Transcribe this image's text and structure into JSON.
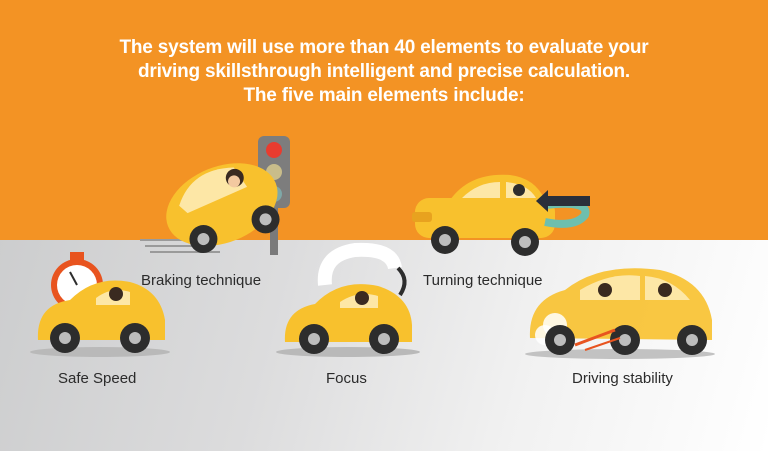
{
  "headline": {
    "line1": "The system will use more than 40 elements to evaluate your",
    "line2": "driving skillsthrough intelligent and precise calculation.",
    "line3": "The five main elements include:"
  },
  "elements": {
    "braking": "Braking technique",
    "turning": "Turning technique",
    "safe_speed": "Safe Speed",
    "focus": "Focus",
    "stability": "Driving stability"
  },
  "colors": {
    "banner": "#f39324",
    "car_body": "#f8c12d",
    "car_shade": "#e8a21f",
    "text": "#2b2b2b"
  }
}
